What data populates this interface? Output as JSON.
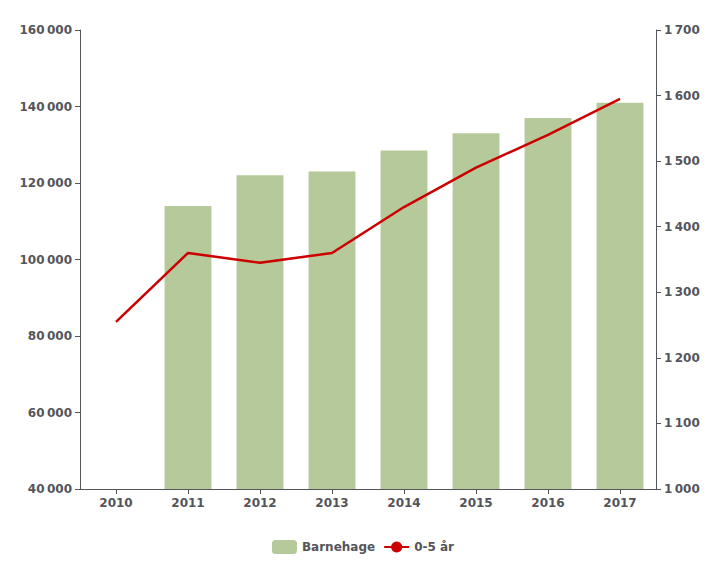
{
  "chart_data": {
    "type": "bar",
    "categories": [
      "2010",
      "2011",
      "2012",
      "2013",
      "2014",
      "2015",
      "2016",
      "2017"
    ],
    "series": [
      {
        "name": "Barnehage",
        "type": "bar",
        "color": "#b5c99a",
        "values": [
          null,
          114000,
          122000,
          123000,
          128500,
          133000,
          137000,
          141000
        ]
      },
      {
        "name": "0-5 år",
        "type": "line",
        "color": "#cc0000",
        "axis": "y2",
        "values": [
          1255,
          1360,
          1345,
          1360,
          1430,
          1490,
          1540,
          1595
        ]
      }
    ],
    "ylim": [
      40000,
      160000
    ],
    "yticks": [
      {
        "value": 40000,
        "label": "40 000"
      },
      {
        "value": 60000,
        "label": "60 000"
      },
      {
        "value": 80000,
        "label": "80 000"
      },
      {
        "value": 100000,
        "label": "100 000"
      },
      {
        "value": 120000,
        "label": "120 000"
      },
      {
        "value": 140000,
        "label": "140 000"
      },
      {
        "value": 160000,
        "label": "160 000"
      }
    ],
    "y2lim": [
      1000,
      1700
    ],
    "y2ticks": [
      {
        "value": 1000,
        "label": "1 000"
      },
      {
        "value": 1100,
        "label": "1 100"
      },
      {
        "value": 1200,
        "label": "1 200"
      },
      {
        "value": 1300,
        "label": "1 300"
      },
      {
        "value": 1400,
        "label": "1 400"
      },
      {
        "value": 1500,
        "label": "1 500"
      },
      {
        "value": 1600,
        "label": "1 600"
      },
      {
        "value": 1700,
        "label": "1 700"
      }
    ],
    "grid": false,
    "legend": "bottom"
  }
}
